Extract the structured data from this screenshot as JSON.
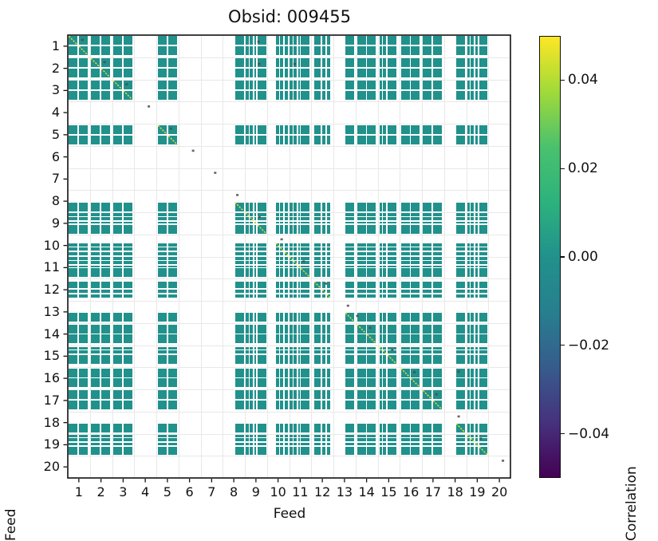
{
  "chart_data": {
    "type": "heatmap",
    "title": "Obsid: 009455",
    "xlabel": "Feed",
    "ylabel": "Feed",
    "x_ticks": [
      "1",
      "2",
      "3",
      "4",
      "5",
      "6",
      "7",
      "8",
      "9",
      "10",
      "11",
      "12",
      "13",
      "14",
      "15",
      "16",
      "17",
      "18",
      "19",
      "20"
    ],
    "y_ticks": [
      "1",
      "2",
      "3",
      "4",
      "5",
      "6",
      "7",
      "8",
      "9",
      "10",
      "11",
      "12",
      "13",
      "14",
      "15",
      "16",
      "17",
      "18",
      "19",
      "20"
    ],
    "n_feeds": 20,
    "value_at_cells": 0.0,
    "cell_color": "#21918c",
    "diag_color": "#fde725",
    "grid_color": "#e8e8e8",
    "grid_on": true,
    "speck_color": "#4a4a4a",
    "spine_color": "#111111",
    "inactive_feeds": [
      4,
      6,
      7,
      20
    ],
    "feed_band_profiles": [
      [
        [
          0.05,
          0.44
        ],
        [
          0.51,
          0.9
        ]
      ],
      [
        [
          0.05,
          0.44
        ],
        [
          0.51,
          0.9
        ]
      ],
      [
        [
          0.05,
          0.44
        ],
        [
          0.51,
          0.9
        ]
      ],
      [],
      [
        [
          0.08,
          0.47
        ],
        [
          0.55,
          0.96
        ]
      ],
      [],
      [],
      [
        [
          0.55,
          0.94
        ]
      ],
      [
        [
          0.03,
          0.17
        ],
        [
          0.23,
          0.38
        ],
        [
          0.44,
          0.53
        ],
        [
          0.58,
          0.97
        ]
      ],
      [
        [
          0.4,
          0.54
        ],
        [
          0.6,
          0.74
        ],
        [
          0.8,
          0.96
        ]
      ],
      [
        [
          0.02,
          0.16
        ],
        [
          0.21,
          0.35
        ],
        [
          0.41,
          0.49
        ],
        [
          0.54,
          0.93
        ]
      ],
      [
        [
          0.14,
          0.43
        ],
        [
          0.5,
          0.64
        ],
        [
          0.7,
          0.84
        ]
      ],
      [
        [
          0.55,
          0.94
        ]
      ],
      [
        [
          0.07,
          0.46
        ],
        [
          0.53,
          0.92
        ]
      ],
      [
        [
          0.08,
          0.18
        ],
        [
          0.24,
          0.39
        ],
        [
          0.45,
          0.85
        ]
      ],
      [
        [
          0.05,
          0.44
        ],
        [
          0.51,
          0.9
        ]
      ],
      [
        [
          0.05,
          0.44
        ],
        [
          0.51,
          0.9
        ]
      ],
      [
        [
          0.55,
          0.94
        ]
      ],
      [
        [
          0.05,
          0.16
        ],
        [
          0.21,
          0.37
        ],
        [
          0.43,
          0.55
        ],
        [
          0.6,
          0.97
        ]
      ],
      []
    ],
    "diag_mark_row_offset": 0.22,
    "diag_mark_col_offset": 0.66,
    "extra_specks": [
      [
        1.3,
        9.62
      ],
      [
        2.3,
        9.65
      ],
      [
        2.3,
        11.25
      ],
      [
        13.68,
        14.08
      ],
      [
        16.2,
        18.66
      ]
    ],
    "colorbar": {
      "label": "Correlation",
      "colormap": "viridis",
      "vmin": -0.05,
      "vmax": 0.05,
      "ticks": [
        0.04,
        0.02,
        0.0,
        -0.02,
        -0.04
      ],
      "tick_labels": [
        "0.04",
        "0.02",
        "0.00",
        "−0.02",
        "−0.04"
      ],
      "gradient_stops": [
        "#fde725",
        "#a0da39",
        "#4ac16d",
        "#2db27d",
        "#21918c",
        "#277f8e",
        "#365c8d",
        "#46327e",
        "#440154"
      ]
    }
  }
}
